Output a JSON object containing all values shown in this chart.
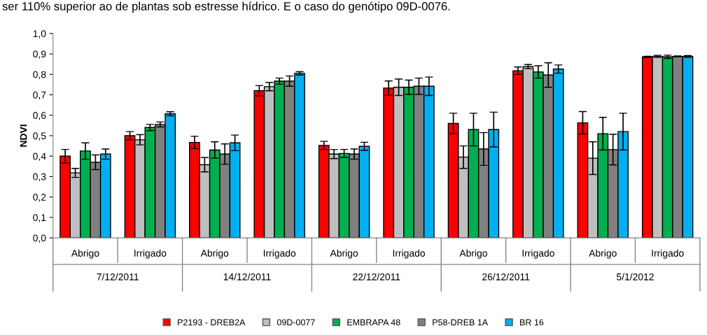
{
  "chart_data": {
    "type": "bar",
    "ylabel": "NDVI",
    "categories": [
      "Abrigo",
      "Irrigado",
      "Abrigo",
      "Irrigado",
      "Abrigo",
      "Irrigado",
      "Abrigo",
      "Irrigado",
      "Abrigo",
      "Irrigado"
    ],
    "annotations": [
      "ser 110% superior ao de plantas sob estresse hídrico. E o caso do genótipo 09D-0076.",
      "7/12/2011",
      "14/12/2011",
      "22/12/2011",
      "26/12/2011",
      "5/1/2012"
    ],
    "series": [
      {
        "name": "P2193 - DREB2A",
        "color": "#ff0000",
        "values": [
          0.4,
          0.5,
          0.467,
          0.72,
          0.452,
          0.733,
          0.56,
          0.818,
          0.563,
          0.886
        ],
        "errors": [
          0.033,
          0.02,
          0.03,
          0.025,
          0.02,
          0.035,
          0.05,
          0.018,
          0.055,
          0.003
        ]
      },
      {
        "name": "09D-0077",
        "color": "#bfbfbf",
        "values": [
          0.318,
          0.48,
          0.358,
          0.74,
          0.41,
          0.737,
          0.395,
          0.838,
          0.39,
          0.888
        ],
        "errors": [
          0.022,
          0.025,
          0.035,
          0.02,
          0.022,
          0.04,
          0.055,
          0.01,
          0.08,
          0.005
        ]
      },
      {
        "name": "EMBRAPA 48",
        "color": "#00b050",
        "values": [
          0.425,
          0.54,
          0.43,
          0.767,
          0.413,
          0.737,
          0.53,
          0.812,
          0.51,
          0.886
        ],
        "errors": [
          0.04,
          0.015,
          0.04,
          0.015,
          0.02,
          0.035,
          0.08,
          0.03,
          0.08,
          0.008
        ]
      },
      {
        "name": "P58-DREB 1A",
        "color": "#808080",
        "values": [
          0.37,
          0.555,
          0.41,
          0.767,
          0.41,
          0.742,
          0.435,
          0.797,
          0.432,
          0.888
        ],
        "errors": [
          0.036,
          0.012,
          0.05,
          0.025,
          0.025,
          0.04,
          0.08,
          0.06,
          0.075,
          0.002
        ]
      },
      {
        "name": "BR 16",
        "color": "#00b0f0",
        "values": [
          0.41,
          0.607,
          0.465,
          0.805,
          0.448,
          0.742,
          0.53,
          0.826,
          0.52,
          0.888
        ],
        "errors": [
          0.025,
          0.01,
          0.038,
          0.008,
          0.02,
          0.045,
          0.085,
          0.02,
          0.09,
          0.004
        ]
      }
    ],
    "ylim": [
      0,
      1
    ],
    "yticks": [
      {
        "value": 0,
        "label": "0,0"
      },
      {
        "value": 0.1,
        "label": "0,1"
      },
      {
        "value": 0.2,
        "label": "0,2"
      },
      {
        "value": 0.3,
        "label": "0,3"
      },
      {
        "value": 0.4,
        "label": "0,4"
      },
      {
        "value": 0.5,
        "label": "0,5"
      },
      {
        "value": 0.6,
        "label": "0,6"
      },
      {
        "value": 0.7,
        "label": "0,7"
      },
      {
        "value": 0.8,
        "label": "0,8"
      },
      {
        "value": 0.9,
        "label": "0,9"
      },
      {
        "value": 1.0,
        "label": "1,0"
      }
    ],
    "legend": "bottom",
    "grid": false
  }
}
